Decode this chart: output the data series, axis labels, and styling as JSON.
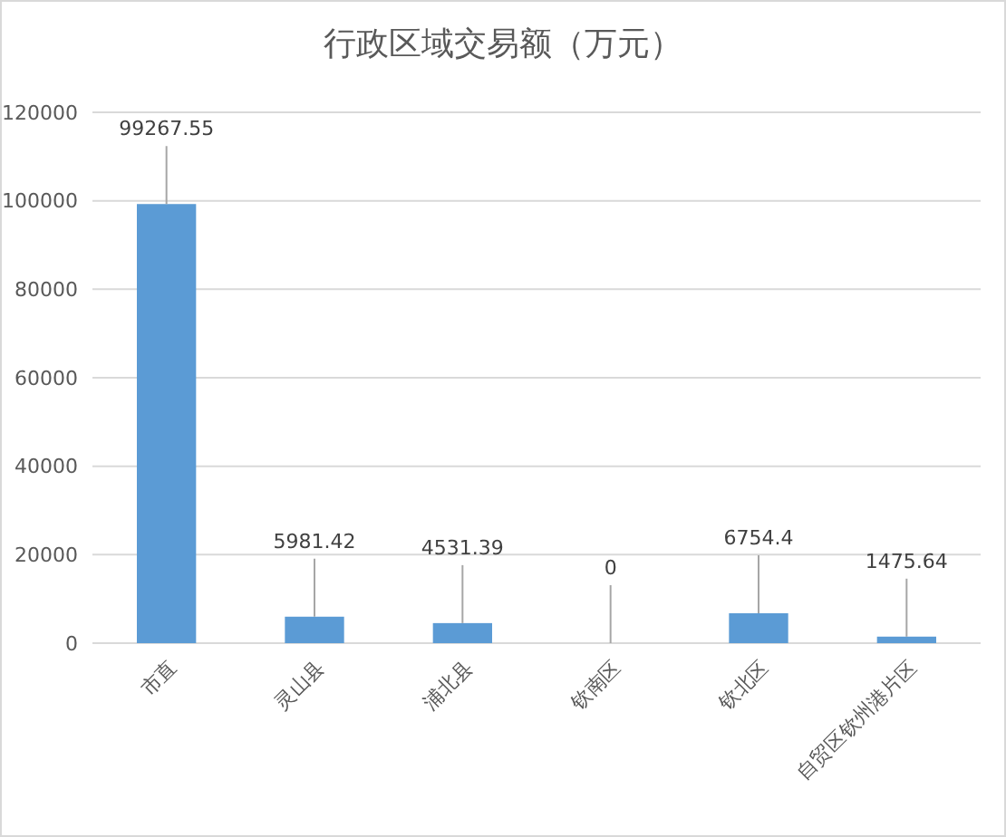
{
  "chart_data": {
    "type": "bar",
    "title": "行政区域交易额（万元）",
    "categories": [
      "市直",
      "灵山县",
      "浦北县",
      "钦南区",
      "钦北区",
      "自贸区钦州港片区"
    ],
    "values": [
      99267.55,
      5981.42,
      4531.39,
      0,
      6754.4,
      1475.64
    ],
    "color": "#5b9bd5",
    "ylim": [
      0,
      120000
    ],
    "yticks": [
      0,
      20000,
      40000,
      60000,
      80000,
      100000,
      120000
    ],
    "grid": "y",
    "data_labels": true
  }
}
